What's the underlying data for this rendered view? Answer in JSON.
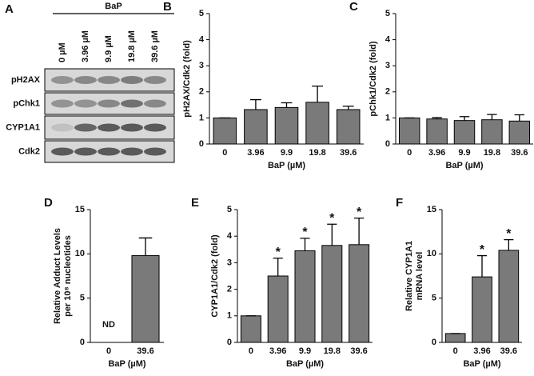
{
  "blot": {
    "label": "A",
    "group": "BaP",
    "lanes": [
      "0 µM",
      "3.96 µM",
      "9.9 µM",
      "19.8 µM",
      "39.6 µM"
    ],
    "rows": [
      "pH2AX",
      "pChk1",
      "CYP1A1",
      "Cdk2"
    ]
  },
  "chart_data": [
    {
      "type": "bar",
      "label": "B",
      "ylabel": [
        "pH2AX/Cdk2 (fold)"
      ],
      "xlabel": "BaP (µM)",
      "categories": [
        "0",
        "3.96",
        "9.9",
        "19.8",
        "39.6"
      ],
      "values": [
        1,
        1.32,
        1.4,
        1.6,
        1.32
      ],
      "errors": [
        0,
        0.38,
        0.18,
        0.62,
        0.13
      ],
      "color": "#7a7a7a",
      "ylim": [
        0,
        5
      ],
      "yticks": [
        0,
        1,
        2,
        3,
        4,
        5
      ]
    },
    {
      "type": "bar",
      "label": "C",
      "ylabel": [
        "pChk1/Cdk2 (fold)"
      ],
      "xlabel": "BaP (µM)",
      "categories": [
        "0",
        "3.96",
        "9.9",
        "19.8",
        "39.6"
      ],
      "values": [
        1,
        0.96,
        0.9,
        0.93,
        0.88
      ],
      "errors": [
        0,
        0.05,
        0.15,
        0.2,
        0.24
      ],
      "color": "#7a7a7a",
      "ylim": [
        0,
        5
      ],
      "yticks": [
        0,
        1,
        2,
        3,
        4,
        5
      ]
    },
    {
      "type": "bar",
      "label": "D",
      "ylabel": [
        "Relative Adduct Levels",
        "per 10⁸ nucleotides"
      ],
      "xlabel": "BaP (µM)",
      "categories": [
        "0",
        "39.6"
      ],
      "values": [
        null,
        9.8
      ],
      "errors": [
        null,
        2.0
      ],
      "annotations": [
        "ND",
        null
      ],
      "color": "#7a7a7a",
      "ylim": [
        0,
        15
      ],
      "yticks": [
        0,
        5,
        10,
        15
      ]
    },
    {
      "type": "bar",
      "label": "E",
      "ylabel": [
        "CYP1A1/Cdk2 (fold)"
      ],
      "xlabel": "BaP (µM)",
      "categories": [
        "0",
        "3.96",
        "9.9",
        "19.8",
        "39.6"
      ],
      "values": [
        1,
        2.5,
        3.45,
        3.65,
        3.68
      ],
      "errors": [
        0,
        0.67,
        0.47,
        0.8,
        1.0
      ],
      "annotations": [
        null,
        "*",
        "*",
        "*",
        "*"
      ],
      "color": "#7a7a7a",
      "ylim": [
        0,
        5
      ],
      "yticks": [
        0,
        1,
        2,
        3,
        4,
        5
      ]
    },
    {
      "type": "bar",
      "label": "F",
      "ylabel": [
        "Relative CYP1A1",
        "mRNA level"
      ],
      "xlabel": "BaP (µM)",
      "categories": [
        "0",
        "3.96",
        "39.6"
      ],
      "values": [
        1,
        7.4,
        10.4
      ],
      "errors": [
        0,
        2.4,
        1.2
      ],
      "annotations": [
        null,
        "*",
        "*"
      ],
      "color": "#7a7a7a",
      "ylim": [
        0,
        15
      ],
      "yticks": [
        0,
        5,
        10,
        15
      ]
    }
  ]
}
